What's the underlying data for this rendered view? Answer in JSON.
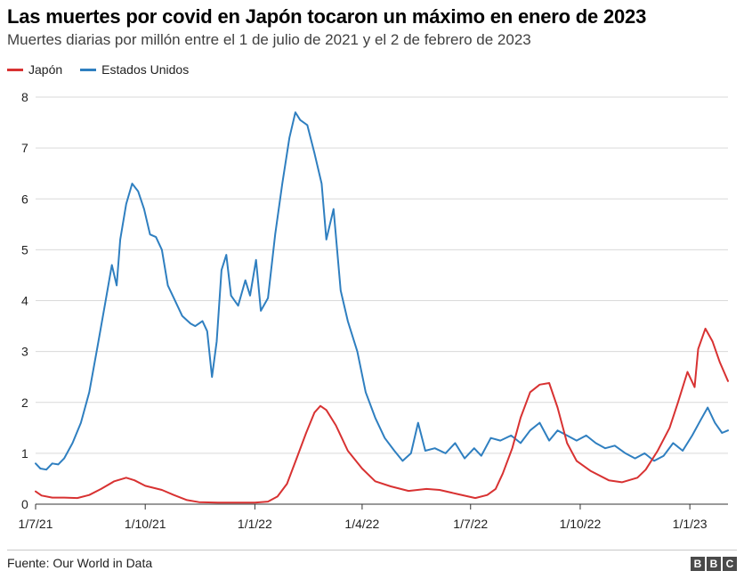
{
  "header": {
    "title": "Las muertes por covid en Japón tocaron un máximo en enero de 2023",
    "subtitle": "Muertes diarias por millón entre el 1 de julio de 2021 y el 2 de febrero de 2023"
  },
  "footer": {
    "source": "Fuente: Our World in Data",
    "logo_letters": [
      "B",
      "B",
      "C"
    ]
  },
  "colors": {
    "japon": "#d83232",
    "estados_unidos": "#2f7fc0",
    "grid": "#d9d9d9",
    "axis": "#333333"
  },
  "chart_data": {
    "type": "line",
    "title": "Las muertes por covid en Japón tocaron un máximo en enero de 2023",
    "subtitle": "Muertes diarias por millón entre el 1 de julio de 2021 y el 2 de febrero de 2023",
    "xlabel": "",
    "ylabel": "",
    "xlim": [
      "2021-07-01",
      "2023-02-02"
    ],
    "ylim": [
      0,
      8
    ],
    "yticks": [
      0,
      1,
      2,
      3,
      4,
      5,
      6,
      7,
      8
    ],
    "xticks": [
      {
        "label": "1/7/21",
        "date": "2021-07-01"
      },
      {
        "label": "1/10/21",
        "date": "2021-10-01"
      },
      {
        "label": "1/1/22",
        "date": "2022-01-01"
      },
      {
        "label": "1/4/22",
        "date": "2022-04-01"
      },
      {
        "label": "1/7/22",
        "date": "2022-07-01"
      },
      {
        "label": "1/10/22",
        "date": "2022-10-01"
      },
      {
        "label": "1/1/23",
        "date": "2023-01-01"
      }
    ],
    "grid": "horizontal",
    "legend": "top-left",
    "series": [
      {
        "name": "Japón",
        "color": "#d83232",
        "points": [
          [
            "2021-07-01",
            0.25
          ],
          [
            "2021-07-06",
            0.17
          ],
          [
            "2021-07-15",
            0.13
          ],
          [
            "2021-07-25",
            0.13
          ],
          [
            "2021-08-05",
            0.12
          ],
          [
            "2021-08-15",
            0.18
          ],
          [
            "2021-08-25",
            0.3
          ],
          [
            "2021-09-05",
            0.45
          ],
          [
            "2021-09-15",
            0.52
          ],
          [
            "2021-09-22",
            0.47
          ],
          [
            "2021-10-01",
            0.36
          ],
          [
            "2021-10-15",
            0.28
          ],
          [
            "2021-10-25",
            0.18
          ],
          [
            "2021-11-05",
            0.08
          ],
          [
            "2021-11-15",
            0.04
          ],
          [
            "2021-12-01",
            0.03
          ],
          [
            "2021-12-15",
            0.03
          ],
          [
            "2022-01-01",
            0.03
          ],
          [
            "2022-01-12",
            0.05
          ],
          [
            "2022-01-20",
            0.15
          ],
          [
            "2022-01-28",
            0.4
          ],
          [
            "2022-02-05",
            0.9
          ],
          [
            "2022-02-13",
            1.4
          ],
          [
            "2022-02-20",
            1.8
          ],
          [
            "2022-02-25",
            1.93
          ],
          [
            "2022-03-02",
            1.85
          ],
          [
            "2022-03-10",
            1.55
          ],
          [
            "2022-03-20",
            1.05
          ],
          [
            "2022-04-01",
            0.7
          ],
          [
            "2022-04-12",
            0.45
          ],
          [
            "2022-04-25",
            0.35
          ],
          [
            "2022-05-10",
            0.26
          ],
          [
            "2022-05-25",
            0.3
          ],
          [
            "2022-06-05",
            0.28
          ],
          [
            "2022-06-20",
            0.2
          ],
          [
            "2022-07-05",
            0.12
          ],
          [
            "2022-07-15",
            0.18
          ],
          [
            "2022-07-22",
            0.3
          ],
          [
            "2022-07-28",
            0.6
          ],
          [
            "2022-08-05",
            1.1
          ],
          [
            "2022-08-12",
            1.7
          ],
          [
            "2022-08-20",
            2.2
          ],
          [
            "2022-08-28",
            2.35
          ],
          [
            "2022-09-05",
            2.38
          ],
          [
            "2022-09-12",
            1.9
          ],
          [
            "2022-09-20",
            1.2
          ],
          [
            "2022-09-28",
            0.85
          ],
          [
            "2022-10-10",
            0.65
          ],
          [
            "2022-10-25",
            0.47
          ],
          [
            "2022-11-05",
            0.43
          ],
          [
            "2022-11-18",
            0.52
          ],
          [
            "2022-11-25",
            0.68
          ],
          [
            "2022-12-05",
            1.05
          ],
          [
            "2022-12-15",
            1.5
          ],
          [
            "2022-12-22",
            2.0
          ],
          [
            "2022-12-30",
            2.6
          ],
          [
            "2023-01-05",
            2.3
          ],
          [
            "2023-01-08",
            3.05
          ],
          [
            "2023-01-14",
            3.45
          ],
          [
            "2023-01-20",
            3.2
          ],
          [
            "2023-01-26",
            2.8
          ],
          [
            "2023-02-02",
            2.42
          ]
        ]
      },
      {
        "name": "Estados Unidos",
        "color": "#2f7fc0",
        "points": [
          [
            "2021-07-01",
            0.8
          ],
          [
            "2021-07-05",
            0.7
          ],
          [
            "2021-07-10",
            0.68
          ],
          [
            "2021-07-15",
            0.8
          ],
          [
            "2021-07-20",
            0.78
          ],
          [
            "2021-07-25",
            0.9
          ],
          [
            "2021-08-01",
            1.2
          ],
          [
            "2021-08-08",
            1.6
          ],
          [
            "2021-08-15",
            2.2
          ],
          [
            "2021-08-22",
            3.1
          ],
          [
            "2021-08-28",
            3.9
          ],
          [
            "2021-09-03",
            4.7
          ],
          [
            "2021-09-07",
            4.3
          ],
          [
            "2021-09-10",
            5.2
          ],
          [
            "2021-09-15",
            5.9
          ],
          [
            "2021-09-20",
            6.3
          ],
          [
            "2021-09-25",
            6.15
          ],
          [
            "2021-09-30",
            5.8
          ],
          [
            "2021-10-05",
            5.3
          ],
          [
            "2021-10-10",
            5.25
          ],
          [
            "2021-10-15",
            5.0
          ],
          [
            "2021-10-20",
            4.3
          ],
          [
            "2021-10-25",
            4.05
          ],
          [
            "2021-11-01",
            3.7
          ],
          [
            "2021-11-08",
            3.55
          ],
          [
            "2021-11-12",
            3.5
          ],
          [
            "2021-11-18",
            3.6
          ],
          [
            "2021-11-22",
            3.4
          ],
          [
            "2021-11-26",
            2.5
          ],
          [
            "2021-11-30",
            3.2
          ],
          [
            "2021-12-04",
            4.6
          ],
          [
            "2021-12-08",
            4.9
          ],
          [
            "2021-12-12",
            4.1
          ],
          [
            "2021-12-18",
            3.9
          ],
          [
            "2021-12-24",
            4.4
          ],
          [
            "2021-12-28",
            4.1
          ],
          [
            "2022-01-02",
            4.8
          ],
          [
            "2022-01-06",
            3.8
          ],
          [
            "2022-01-12",
            4.05
          ],
          [
            "2022-01-18",
            5.3
          ],
          [
            "2022-01-24",
            6.3
          ],
          [
            "2022-01-30",
            7.2
          ],
          [
            "2022-02-04",
            7.7
          ],
          [
            "2022-02-08",
            7.55
          ],
          [
            "2022-02-14",
            7.45
          ],
          [
            "2022-02-20",
            6.9
          ],
          [
            "2022-02-26",
            6.3
          ],
          [
            "2022-03-02",
            5.2
          ],
          [
            "2022-03-08",
            5.8
          ],
          [
            "2022-03-14",
            4.2
          ],
          [
            "2022-03-20",
            3.6
          ],
          [
            "2022-03-28",
            3.0
          ],
          [
            "2022-04-04",
            2.2
          ],
          [
            "2022-04-12",
            1.7
          ],
          [
            "2022-04-20",
            1.3
          ],
          [
            "2022-04-28",
            1.05
          ],
          [
            "2022-05-05",
            0.85
          ],
          [
            "2022-05-12",
            1.0
          ],
          [
            "2022-05-18",
            1.6
          ],
          [
            "2022-05-24",
            1.05
          ],
          [
            "2022-06-01",
            1.1
          ],
          [
            "2022-06-10",
            1.0
          ],
          [
            "2022-06-18",
            1.2
          ],
          [
            "2022-06-26",
            0.9
          ],
          [
            "2022-07-04",
            1.1
          ],
          [
            "2022-07-10",
            0.95
          ],
          [
            "2022-07-18",
            1.3
          ],
          [
            "2022-07-26",
            1.25
          ],
          [
            "2022-08-04",
            1.35
          ],
          [
            "2022-08-12",
            1.2
          ],
          [
            "2022-08-20",
            1.45
          ],
          [
            "2022-08-28",
            1.6
          ],
          [
            "2022-09-05",
            1.25
          ],
          [
            "2022-09-12",
            1.45
          ],
          [
            "2022-09-20",
            1.35
          ],
          [
            "2022-09-28",
            1.25
          ],
          [
            "2022-10-06",
            1.35
          ],
          [
            "2022-10-14",
            1.2
          ],
          [
            "2022-10-22",
            1.1
          ],
          [
            "2022-10-30",
            1.15
          ],
          [
            "2022-11-08",
            1.0
          ],
          [
            "2022-11-16",
            0.9
          ],
          [
            "2022-11-24",
            1.0
          ],
          [
            "2022-12-02",
            0.85
          ],
          [
            "2022-12-10",
            0.95
          ],
          [
            "2022-12-18",
            1.2
          ],
          [
            "2022-12-26",
            1.05
          ],
          [
            "2023-01-03",
            1.35
          ],
          [
            "2023-01-10",
            1.65
          ],
          [
            "2023-01-16",
            1.9
          ],
          [
            "2023-01-22",
            1.6
          ],
          [
            "2023-01-28",
            1.4
          ],
          [
            "2023-02-02",
            1.45
          ]
        ]
      }
    ]
  }
}
